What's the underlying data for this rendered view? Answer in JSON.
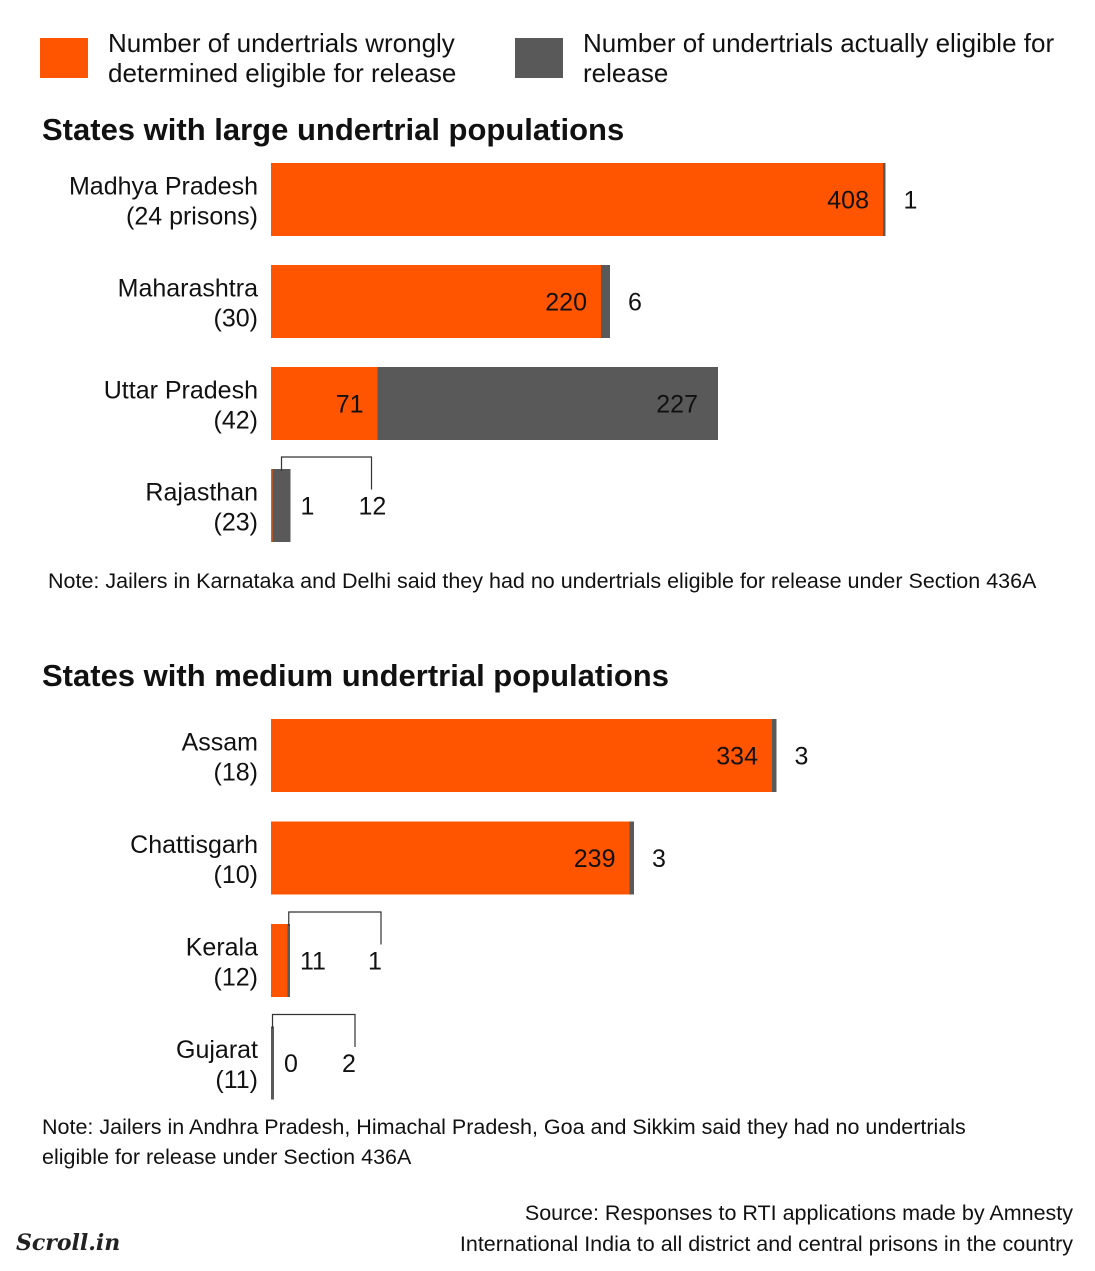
{
  "legend": {
    "items": [
      {
        "label": "Number of undertrials wrongly determined eligible for release",
        "color": "#ff5400"
      },
      {
        "label": "Number of undertrials actually eligible for release",
        "color": "#595959"
      }
    ]
  },
  "chart_data": [
    {
      "type": "bar",
      "orientation": "horizontal",
      "stacked": true,
      "title": "States with large undertrial populations",
      "categories": [
        "Madhya Pradesh",
        "Maharashtra",
        "Uttar Pradesh",
        "Rajasthan"
      ],
      "sublabels": [
        "(24 prisons)",
        "(30)",
        "(42)",
        "(23)"
      ],
      "series": [
        {
          "name": "Number of undertrials wrongly determined eligible for release",
          "color": "#ff5400",
          "values": [
            408,
            220,
            71,
            1
          ]
        },
        {
          "name": "Number of undertrials actually eligible for release",
          "color": "#595959",
          "values": [
            1,
            6,
            227,
            12
          ]
        }
      ],
      "note": "Note: Jailers in Karnataka and Delhi said they had no undertrials eligible for release under Section 436A"
    },
    {
      "type": "bar",
      "orientation": "horizontal",
      "stacked": true,
      "title": "States with medium undertrial populations",
      "categories": [
        "Assam",
        "Chattisgarh",
        "Kerala",
        "Gujarat"
      ],
      "sublabels": [
        "(18)",
        "(10)",
        "(12)",
        "(11)"
      ],
      "series": [
        {
          "name": "Number of undertrials wrongly determined eligible for release",
          "color": "#ff5400",
          "values": [
            334,
            239,
            11,
            0
          ]
        },
        {
          "name": "Number of undertrials actually eligible for release",
          "color": "#595959",
          "values": [
            3,
            3,
            1,
            2
          ]
        }
      ],
      "note": "Note: Jailers in Andhra Pradesh, Himachal Pradesh, Goa and Sikkim said they had no undertrials eligible for release under Section 436A"
    }
  ],
  "source": {
    "line1": "Source: Responses to RTI applications made by Amnesty",
    "line2": "International India to all district and central prisons in the country"
  },
  "logo": {
    "text": "Scroll.in"
  }
}
